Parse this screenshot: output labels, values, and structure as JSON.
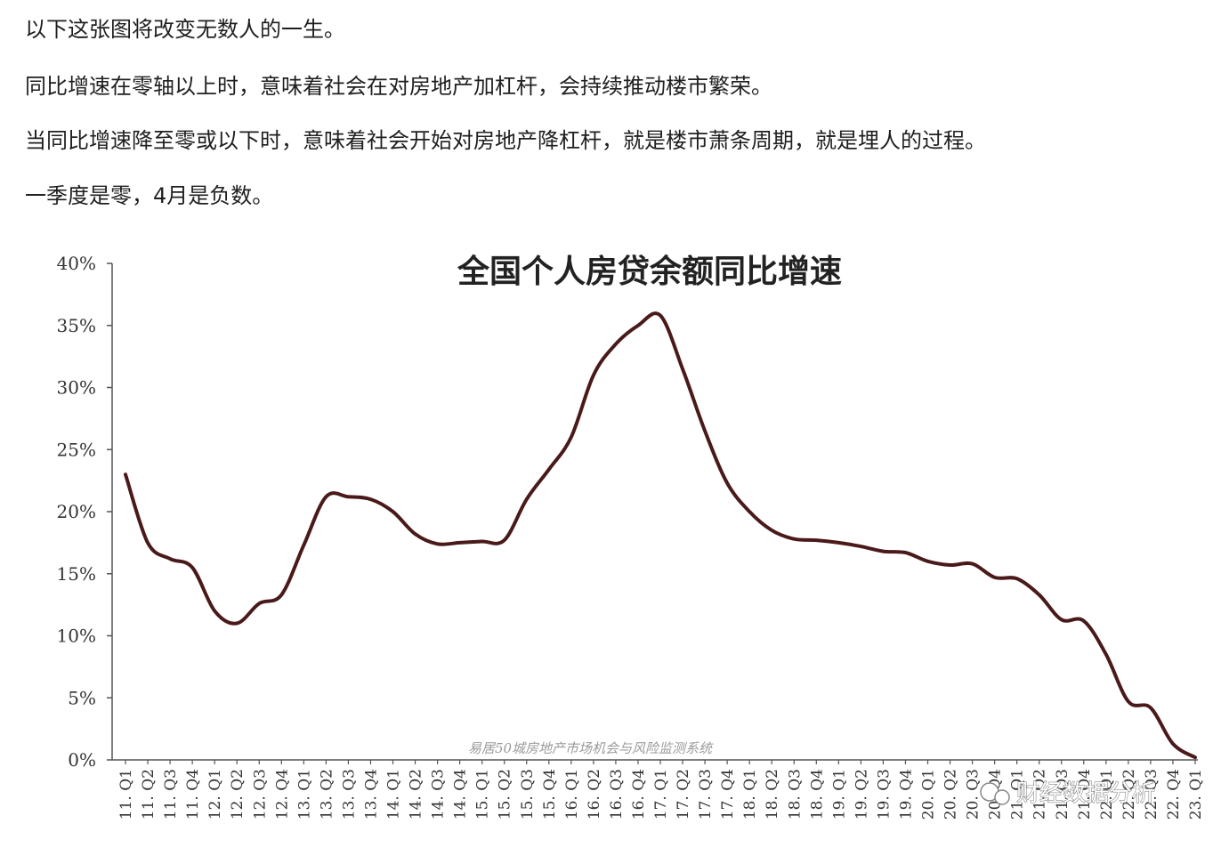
{
  "article": {
    "p1": "以下这张图将改变无数人的一生。",
    "p2": "同比增速在零轴以上时，意味着社会在对房地产加杠杆，会持续推动楼市繁荣。",
    "p3": "当同比增速降至零或以下时，意味着社会开始对房地产降杠杆，就是楼市萧条周期，就是埋人的过程。",
    "p4": "一季度是零，4月是负数。"
  },
  "watermark": "财经数据分析",
  "chart_data": {
    "type": "line",
    "title": "全国个人房贷余额同比增速",
    "source_note": "易居50城房地产市场机会与风险监测系统",
    "xlabel": "",
    "ylabel": "",
    "ylim": [
      0,
      40
    ],
    "ytick_labels": [
      "0%",
      "5%",
      "10%",
      "15%",
      "20%",
      "25%",
      "30%",
      "35%",
      "40%"
    ],
    "categories": [
      "11. Q1",
      "11. Q2",
      "11. Q3",
      "11. Q4",
      "12. Q1",
      "12. Q2",
      "12. Q3",
      "12. Q4",
      "13. Q1",
      "13. Q2",
      "13. Q3",
      "13. Q4",
      "14. Q1",
      "14. Q2",
      "14. Q3",
      "14. Q4",
      "15. Q1",
      "15. Q2",
      "15. Q3",
      "15. Q4",
      "16. Q1",
      "16. Q2",
      "16. Q3",
      "16. Q4",
      "17. Q1",
      "17. Q2",
      "17. Q3",
      "17. Q4",
      "18. Q1",
      "18. Q2",
      "18. Q3",
      "18. Q4",
      "19. Q1",
      "19. Q2",
      "19. Q3",
      "19. Q4",
      "20. Q1",
      "20. Q2",
      "20. Q3",
      "20. Q4",
      "21. Q1",
      "21. Q2",
      "21. Q3",
      "21. Q4",
      "22. Q1",
      "22. Q2",
      "22. Q3",
      "22. Q4",
      "23. Q1"
    ],
    "series": [
      {
        "color": "#4a1a1a",
        "values": [
          23.0,
          17.5,
          16.2,
          15.5,
          12.0,
          11.0,
          12.6,
          13.3,
          17.3,
          21.2,
          21.2,
          21.0,
          20.0,
          18.2,
          17.4,
          17.5,
          17.6,
          17.7,
          21.0,
          23.4,
          26.0,
          31.0,
          33.5,
          35.0,
          35.8,
          31.5,
          26.5,
          22.3,
          20.0,
          18.5,
          17.8,
          17.7,
          17.5,
          17.2,
          16.8,
          16.7,
          16.0,
          15.7,
          15.8,
          14.7,
          14.6,
          13.3,
          11.3,
          11.2,
          8.5,
          4.7,
          4.2,
          1.3,
          0.2
        ]
      }
    ],
    "grid": false,
    "legend": "none"
  }
}
